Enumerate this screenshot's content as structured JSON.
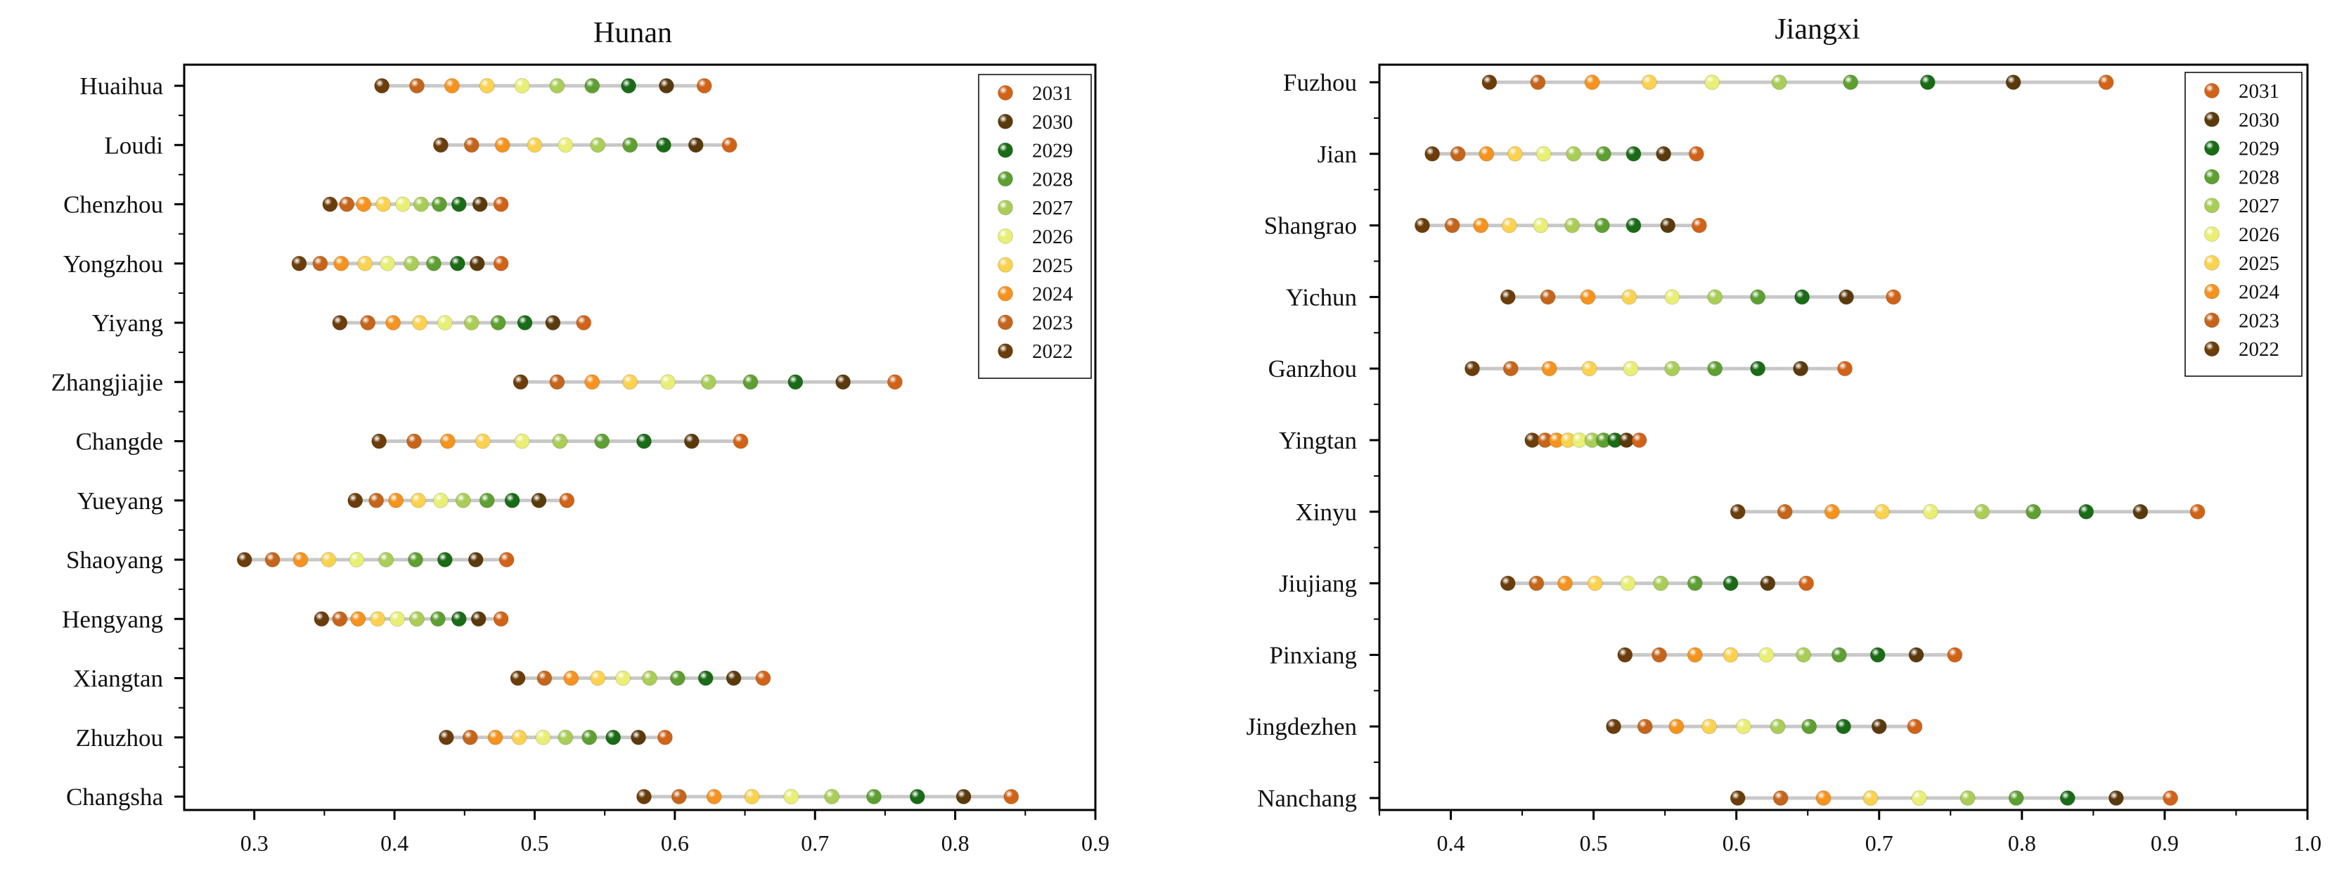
{
  "years": [
    "2022",
    "2023",
    "2024",
    "2025",
    "2026",
    "2027",
    "2028",
    "2029",
    "2030",
    "2031"
  ],
  "year_colors": [
    "#6b3d0a",
    "#c4651b",
    "#f5931e",
    "#fbd24f",
    "#e9ef75",
    "#a9cd57",
    "#5e9f31",
    "#1a6b16",
    "#5a3a0c",
    "#d06318"
  ],
  "legend_order": [
    "2031",
    "2030",
    "2029",
    "2028",
    "2027",
    "2026",
    "2025",
    "2024",
    "2023",
    "2022"
  ],
  "chart_data": [
    {
      "type": "dot-range",
      "title": "Hunan",
      "xlim": [
        0.25,
        0.9
      ],
      "xticks": [
        "0.3",
        "0.4",
        "0.5",
        "0.6",
        "0.7",
        "0.8",
        "0.9"
      ],
      "xtick_values": [
        0.3,
        0.4,
        0.5,
        0.6,
        0.7,
        0.8,
        0.9
      ],
      "grid": false,
      "legend_position": "top-right",
      "categories": [
        "Huaihua",
        "Loudi",
        "Chenzhou",
        "Yongzhou",
        "Yiyang",
        "Zhangjiajie",
        "Changde",
        "Yueyang",
        "Shaoyang",
        "Hengyang",
        "Xiangtan",
        "Zhuzhou",
        "Changsha"
      ],
      "series": [
        {
          "name": "2022",
          "values": [
            0.391,
            0.433,
            0.354,
            0.332,
            0.361,
            0.49,
            0.389,
            0.372,
            0.293,
            0.348,
            0.488,
            0.437,
            0.578
          ]
        },
        {
          "name": "2023",
          "values": [
            0.416,
            0.455,
            0.366,
            0.347,
            0.381,
            0.516,
            0.414,
            0.387,
            0.313,
            0.361,
            0.507,
            0.454,
            0.603
          ]
        },
        {
          "name": "2024",
          "values": [
            0.441,
            0.477,
            0.378,
            0.362,
            0.399,
            0.541,
            0.438,
            0.401,
            0.333,
            0.374,
            0.526,
            0.472,
            0.628
          ]
        },
        {
          "name": "2025",
          "values": [
            0.466,
            0.5,
            0.392,
            0.379,
            0.418,
            0.568,
            0.463,
            0.417,
            0.353,
            0.388,
            0.545,
            0.489,
            0.655
          ]
        },
        {
          "name": "2026",
          "values": [
            0.491,
            0.522,
            0.406,
            0.395,
            0.436,
            0.595,
            0.491,
            0.433,
            0.373,
            0.402,
            0.563,
            0.506,
            0.683
          ]
        },
        {
          "name": "2027",
          "values": [
            0.516,
            0.545,
            0.419,
            0.412,
            0.455,
            0.624,
            0.518,
            0.449,
            0.394,
            0.416,
            0.582,
            0.522,
            0.712
          ]
        },
        {
          "name": "2028",
          "values": [
            0.541,
            0.568,
            0.432,
            0.428,
            0.474,
            0.654,
            0.548,
            0.466,
            0.415,
            0.431,
            0.602,
            0.539,
            0.742
          ]
        },
        {
          "name": "2029",
          "values": [
            0.567,
            0.592,
            0.446,
            0.445,
            0.493,
            0.686,
            0.578,
            0.484,
            0.436,
            0.446,
            0.622,
            0.556,
            0.773
          ]
        },
        {
          "name": "2030",
          "values": [
            0.594,
            0.615,
            0.461,
            0.459,
            0.513,
            0.72,
            0.612,
            0.503,
            0.458,
            0.46,
            0.642,
            0.574,
            0.806
          ]
        },
        {
          "name": "2031",
          "values": [
            0.621,
            0.639,
            0.476,
            0.476,
            0.535,
            0.757,
            0.647,
            0.523,
            0.48,
            0.476,
            0.663,
            0.593,
            0.84
          ]
        }
      ]
    },
    {
      "type": "dot-range",
      "title": "Jiangxi",
      "xlim": [
        0.35,
        1.0
      ],
      "xticks": [
        "0.4",
        "0.5",
        "0.6",
        "0.7",
        "0.8",
        "0.9",
        "1.0"
      ],
      "xtick_values": [
        0.4,
        0.5,
        0.6,
        0.7,
        0.8,
        0.9,
        1.0
      ],
      "grid": false,
      "legend_position": "top-right",
      "categories": [
        "Fuzhou",
        "Jian",
        "Shangrao",
        "Yichun",
        "Ganzhou",
        "Yingtan",
        "Xinyu",
        "Jiujiang",
        "Pinxiang",
        "Jingdezhen",
        "Nanchang"
      ],
      "series": [
        {
          "name": "2022",
          "values": [
            0.427,
            0.387,
            0.38,
            0.44,
            0.415,
            0.457,
            0.601,
            0.44,
            0.522,
            0.514,
            0.601
          ]
        },
        {
          "name": "2023",
          "values": [
            0.461,
            0.405,
            0.401,
            0.468,
            0.442,
            0.466,
            0.634,
            0.46,
            0.546,
            0.536,
            0.631
          ]
        },
        {
          "name": "2024",
          "values": [
            0.499,
            0.425,
            0.421,
            0.496,
            0.469,
            0.474,
            0.667,
            0.48,
            0.571,
            0.558,
            0.661
          ]
        },
        {
          "name": "2025",
          "values": [
            0.539,
            0.445,
            0.441,
            0.525,
            0.497,
            0.482,
            0.702,
            0.501,
            0.596,
            0.581,
            0.694
          ]
        },
        {
          "name": "2026",
          "values": [
            0.583,
            0.465,
            0.463,
            0.555,
            0.526,
            0.49,
            0.736,
            0.524,
            0.621,
            0.605,
            0.728
          ]
        },
        {
          "name": "2027",
          "values": [
            0.63,
            0.486,
            0.485,
            0.585,
            0.555,
            0.499,
            0.772,
            0.547,
            0.647,
            0.629,
            0.762
          ]
        },
        {
          "name": "2028",
          "values": [
            0.68,
            0.507,
            0.506,
            0.615,
            0.585,
            0.507,
            0.808,
            0.571,
            0.672,
            0.651,
            0.796
          ]
        },
        {
          "name": "2029",
          "values": [
            0.734,
            0.528,
            0.528,
            0.646,
            0.615,
            0.515,
            0.845,
            0.596,
            0.699,
            0.675,
            0.832
          ]
        },
        {
          "name": "2030",
          "values": [
            0.794,
            0.549,
            0.552,
            0.677,
            0.645,
            0.523,
            0.883,
            0.622,
            0.726,
            0.7,
            0.866
          ]
        },
        {
          "name": "2031",
          "values": [
            0.859,
            0.572,
            0.574,
            0.71,
            0.676,
            0.532,
            0.923,
            0.649,
            0.753,
            0.725,
            0.904
          ]
        }
      ]
    }
  ]
}
